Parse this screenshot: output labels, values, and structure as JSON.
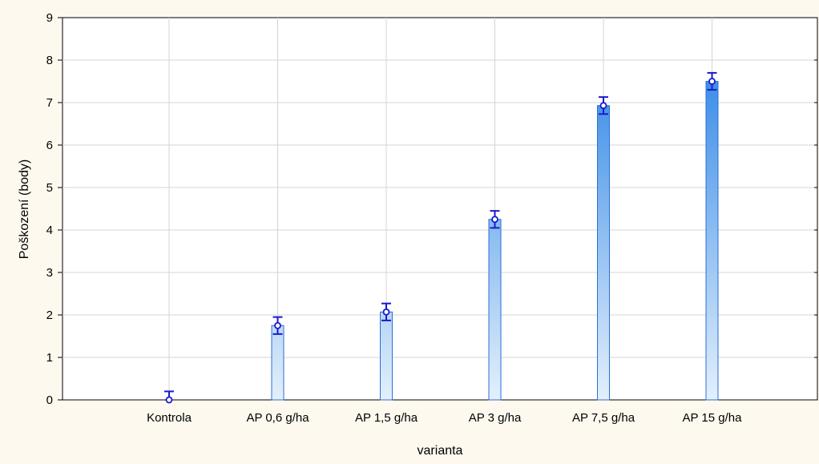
{
  "chart_data": {
    "type": "bar",
    "xlabel": "varianta",
    "ylabel": "Poškození (body)",
    "ylim": [
      0,
      9
    ],
    "yticks": [
      "0",
      "1",
      "2",
      "3",
      "4",
      "5",
      "6",
      "7",
      "8",
      "9"
    ],
    "grid": true,
    "categories": [
      "Kontrola",
      "AP 0,6 g/ha",
      "AP 1,5 g/ha",
      "AP 3 g/ha",
      "AP 7,5 g/ha",
      "AP 15 g/ha"
    ],
    "series": [
      {
        "values": [
          0.0,
          1.75,
          2.07,
          4.25,
          6.93,
          7.5
        ],
        "error_low": [
          0.0,
          1.55,
          1.87,
          4.05,
          6.73,
          7.3
        ],
        "error_high": [
          0.2,
          1.95,
          2.27,
          4.45,
          7.13,
          7.7
        ]
      }
    ],
    "colors": {
      "bar_dark": "#3388e6",
      "bar_light": "#e3f0fc",
      "bar_border": "#2b6fd6",
      "marker": "#1a1acc",
      "grid": "#d4d4d4",
      "plot_bg": "#ffffff",
      "page_bg": "#fef9ef"
    }
  }
}
